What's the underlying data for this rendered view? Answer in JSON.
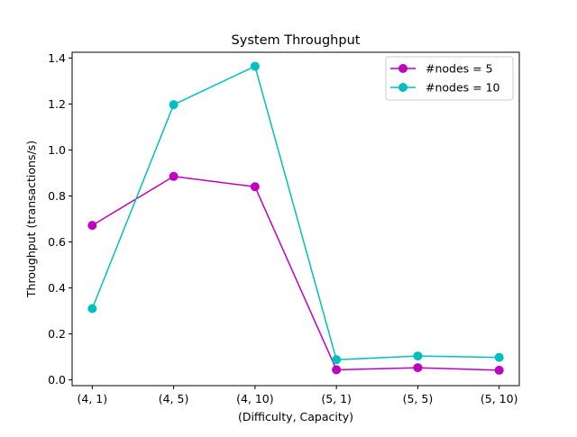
{
  "chart_data": {
    "type": "line",
    "title": "System Throughput",
    "xlabel": "(Difficulty, Capacity)",
    "ylabel": "Throughput (transactions/s)",
    "categories": [
      "(4, 1)",
      "(4, 5)",
      "(4, 10)",
      "(5, 1)",
      "(5, 5)",
      "(5, 10)"
    ],
    "yticks": [
      "0.0",
      "0.2",
      "0.4",
      "0.6",
      "0.8",
      "1.0",
      "1.2",
      "1.4"
    ],
    "ylim": [
      -0.025,
      1.425
    ],
    "grid": false,
    "legend_position": "upper right",
    "series": [
      {
        "name": "#nodes = 5",
        "color": "#bf00bf",
        "marker": "circle",
        "values": [
          0.672,
          0.885,
          0.84,
          0.044,
          0.053,
          0.042
        ]
      },
      {
        "name": "#nodes = 10",
        "color": "#00bfbf",
        "marker": "circle",
        "values": [
          0.31,
          1.197,
          1.364,
          0.088,
          0.104,
          0.098
        ]
      }
    ]
  }
}
